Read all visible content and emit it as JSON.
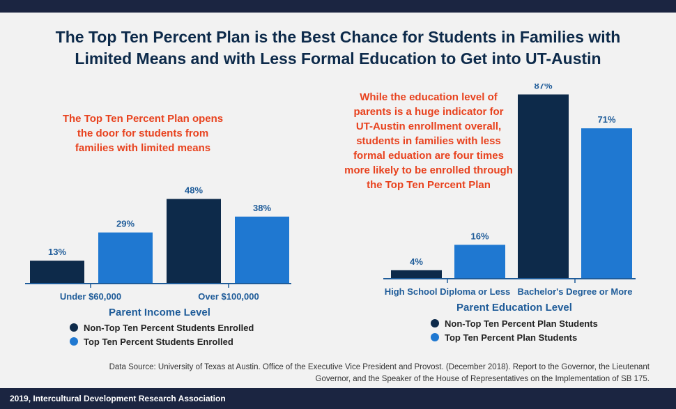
{
  "title_lines": [
    "The Top Ten Percent Plan is the Best Chance for Students in Families with",
    "Limited Means and with Less Formal Education to Get into UT-Austin"
  ],
  "notes": {
    "income": [
      "The Top Ten Percent Plan opens",
      "the door for students from",
      "families with limited means"
    ],
    "education": [
      "While the education level of",
      "parents is a huge indicator for",
      "UT-Austin enrollment overall,",
      "students in families with less",
      "formal eduation are four times",
      "more likely to be enrolled through",
      "the Top Ten Percent Plan"
    ]
  },
  "legends": {
    "income": [
      "Non-Top Ten Percent Students Enrolled",
      "Top Ten Percent Students Enrolled"
    ],
    "education": [
      "Non-Top Ten Percent Plan Students",
      "Top Ten Percent Plan Students"
    ]
  },
  "colors": {
    "dark": "#0d2a4a",
    "light": "#1f78d1",
    "accent": "#e8421e",
    "label": "#1f5c99"
  },
  "source_lines": [
    "Data Source: University of Texas at Austin. Office of the Executive Vice President and Provost. (December 2018). Report to the Governor, the Lieutenant",
    "Governor, and the Speaker of the House of Representatives on the Implementation of SB 175."
  ],
  "footer": "2019, Intercultural Development Research Association",
  "chart_data": [
    {
      "type": "bar",
      "xlabel": "Parent Income Level",
      "ylabel": "",
      "categories": [
        "Under $60,000",
        "Over $100,000"
      ],
      "series": [
        {
          "name": "Non-Top Ten Percent Students Enrolled",
          "values": [
            13,
            48
          ],
          "labels": [
            "13%",
            "48%"
          ]
        },
        {
          "name": "Top Ten Percent Students Enrolled",
          "values": [
            29,
            38
          ],
          "labels": [
            "29%",
            "38%"
          ]
        }
      ],
      "ylim": [
        0,
        100
      ],
      "grid": false
    },
    {
      "type": "bar",
      "xlabel": "Parent Education Level",
      "ylabel": "",
      "categories": [
        "High School Diploma or Less",
        "Bachelor's Degree or More"
      ],
      "series": [
        {
          "name": "Non-Top Ten Percent Plan Students",
          "values": [
            4,
            87
          ],
          "labels": [
            "4%",
            "87%"
          ]
        },
        {
          "name": "Top Ten Percent Plan Students",
          "values": [
            16,
            71
          ],
          "labels": [
            "16%",
            "71%"
          ]
        }
      ],
      "ylim": [
        0,
        100
      ],
      "grid": false
    }
  ]
}
